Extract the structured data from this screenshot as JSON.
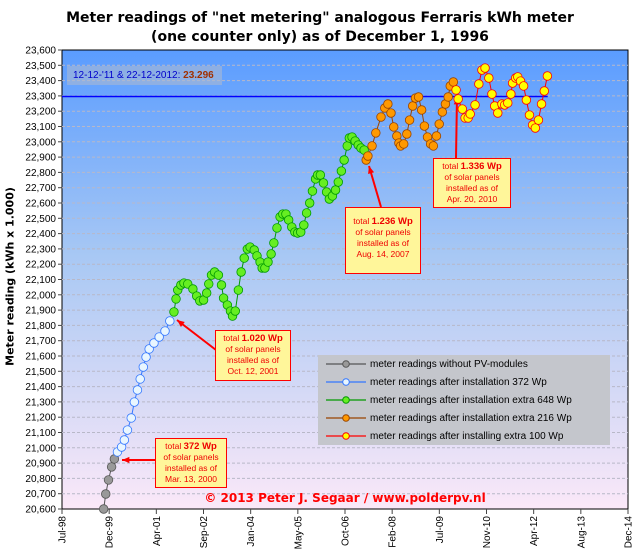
{
  "chart_data": {
    "type": "scatter",
    "title": "Meter readings of \"net metering\" analogous Ferraris kWh meter",
    "subtitle": "(one counter only) as of December 1, 1996",
    "xlabel": "",
    "ylabel": "Meter reading (kWh x 1.000)",
    "ylim": [
      20600,
      23600
    ],
    "xlim_years": [
      1998.5,
      2014.93
    ],
    "yticks": [
      "20,600",
      "20,700",
      "20,800",
      "20,900",
      "21,000",
      "21,100",
      "21,200",
      "21,300",
      "21,400",
      "21,500",
      "21,600",
      "21,700",
      "21,800",
      "21,900",
      "22,000",
      "22,100",
      "22,200",
      "22,300",
      "22,400",
      "22,500",
      "22,600",
      "22,700",
      "22,800",
      "22,900",
      "23,000",
      "23,100",
      "23,200",
      "23,300",
      "23,400",
      "23,500",
      "23,600"
    ],
    "xticks": [
      "Jul-98",
      "Dec-99",
      "Apr-01",
      "Sep-02",
      "Jan-04",
      "May-05",
      "Oct-06",
      "Feb-08",
      "Jul-09",
      "Nov-10",
      "Apr-12",
      "Aug-13",
      "Dec-14"
    ],
    "grid": true,
    "legend_position": "bottom-right",
    "reference_line": {
      "label": "12-12-'11 & 22-12-2012:",
      "value_label": "23.296",
      "value": 23296,
      "color": "#0000ff"
    },
    "series": [
      {
        "name": "meter readings without PV-modules",
        "color": "#555555",
        "fill": "#999999",
        "x": [
          1999.71,
          1999.77,
          1999.85,
          1999.94,
          2000.02
        ],
        "y": [
          20600,
          20698,
          20790,
          20875,
          20927
        ]
      },
      {
        "name": "meter readings after installation 372 Wp",
        "color": "#3377ff",
        "fill": "#e8f6ff",
        "x": [
          2000.11,
          2000.23,
          2000.31,
          2000.4,
          2000.51,
          2000.6,
          2000.69,
          2000.77,
          2000.86,
          2000.94,
          2001.03,
          2001.17,
          2001.32,
          2001.49,
          2001.63
        ],
        "y": [
          20973,
          21005,
          21051,
          21116,
          21195,
          21299,
          21378,
          21450,
          21528,
          21593,
          21646,
          21685,
          21724,
          21763,
          21829
        ]
      },
      {
        "name": "meter readings after installation extra 648 Wp",
        "color": "#009900",
        "fill": "#66ee22",
        "x": [
          2001.75,
          2001.81,
          2001.86,
          2001.95,
          2002.04,
          2002.15,
          2002.3,
          2002.41,
          2002.5,
          2002.61,
          2002.7,
          2002.76,
          2002.84,
          2002.93,
          2003.04,
          2003.13,
          2003.19,
          2003.3,
          2003.39,
          2003.45,
          2003.53,
          2003.62,
          2003.7,
          2003.79,
          2003.88,
          2003.96,
          2004.08,
          2004.16,
          2004.25,
          2004.31,
          2004.39,
          2004.48,
          2004.57,
          2004.65,
          2004.74,
          2004.83,
          2004.91,
          2005.0,
          2005.08,
          2005.17,
          2005.26,
          2005.34,
          2005.43,
          2005.52,
          2005.6,
          2005.69,
          2005.77,
          2005.86,
          2005.92,
          2006.0,
          2006.09,
          2006.18,
          2006.26,
          2006.35,
          2006.44,
          2006.52,
          2006.61,
          2006.69,
          2006.78,
          2006.84,
          2006.92,
          2007.01,
          2007.1,
          2007.18,
          2007.27
        ],
        "y": [
          21888,
          21973,
          22031,
          22064,
          22077,
          22071,
          22038,
          21992,
          21960,
          21966,
          22012,
          22071,
          22129,
          22149,
          22129,
          22064,
          21979,
          21933,
          21894,
          21861,
          21894,
          22031,
          22149,
          22240,
          22299,
          22312,
          22293,
          22254,
          22214,
          22175,
          22175,
          22214,
          22267,
          22339,
          22437,
          22509,
          22528,
          22528,
          22489,
          22443,
          22410,
          22404,
          22410,
          22456,
          22535,
          22600,
          22678,
          22757,
          22783,
          22783,
          22731,
          22672,
          22626,
          22646,
          22685,
          22737,
          22809,
          22881,
          22973,
          23025,
          23031,
          23005,
          22979,
          22959,
          22946
        ]
      },
      {
        "name": "meter readings after installation extra 216 Wp",
        "color": "#994400",
        "fill": "#ff9900",
        "x": [
          2007.33,
          2007.38,
          2007.5,
          2007.61,
          2007.76,
          2007.87,
          2007.96,
          2008.05,
          2008.13,
          2008.22,
          2008.28,
          2008.33,
          2008.42,
          2008.51,
          2008.59,
          2008.68,
          2008.76,
          2008.85,
          2008.94,
          2009.02,
          2009.11,
          2009.2,
          2009.28,
          2009.37,
          2009.45,
          2009.54,
          2009.63,
          2009.71,
          2009.77,
          2009.86
        ],
        "y": [
          22881,
          22907,
          22973,
          23058,
          23162,
          23221,
          23247,
          23188,
          23097,
          23038,
          22992,
          22973,
          22986,
          23051,
          23142,
          23234,
          23286,
          23293,
          23208,
          23103,
          23031,
          22986,
          22973,
          23038,
          23116,
          23195,
          23247,
          23293,
          23365,
          23391
        ]
      },
      {
        "name": "meter readings after installing extra 100 Wp",
        "color": "#ff0000",
        "fill": "#ffff00",
        "x": [
          2009.94,
          2010.0,
          2010.12,
          2010.2,
          2010.29,
          2010.35,
          2010.49,
          2010.6,
          2010.69,
          2010.78,
          2010.89,
          2010.98,
          2011.06,
          2011.15,
          2011.27,
          2011.35,
          2011.44,
          2011.53,
          2011.58,
          2011.67,
          2011.73,
          2011.81,
          2011.9,
          2011.98,
          2012.07,
          2012.16,
          2012.24,
          2012.33,
          2012.42,
          2012.5,
          2012.59
        ],
        "y": [
          23339,
          23280,
          23214,
          23156,
          23156,
          23182,
          23241,
          23378,
          23469,
          23482,
          23417,
          23312,
          23234,
          23188,
          23247,
          23241,
          23254,
          23312,
          23384,
          23417,
          23424,
          23397,
          23365,
          23273,
          23175,
          23110,
          23090,
          23142,
          23247,
          23332,
          23430
        ]
      }
    ],
    "annotations": [
      {
        "pre": "total ",
        "power": "1.020 Wp",
        "l2": "of solar panels",
        "l3": "installed as of",
        "date": "Oct. 12, 2001"
      },
      {
        "pre": "total ",
        "power": "372 Wp",
        "l2": "of solar panels",
        "l3": "installed as of",
        "date": "Mar. 13, 2000"
      },
      {
        "pre": "total ",
        "power": "1.236 Wp",
        "l2": "of solar panels",
        "l3": "installed as of",
        "date": "Aug. 14, 2007"
      },
      {
        "pre": "total ",
        "power": "1.336 Wp",
        "l2": "of solar panels",
        "l3": "installed as of",
        "date": "Apr. 20, 2010"
      }
    ],
    "copyright": "© 2013 Peter J. Segaar / www.polderpv.nl"
  }
}
